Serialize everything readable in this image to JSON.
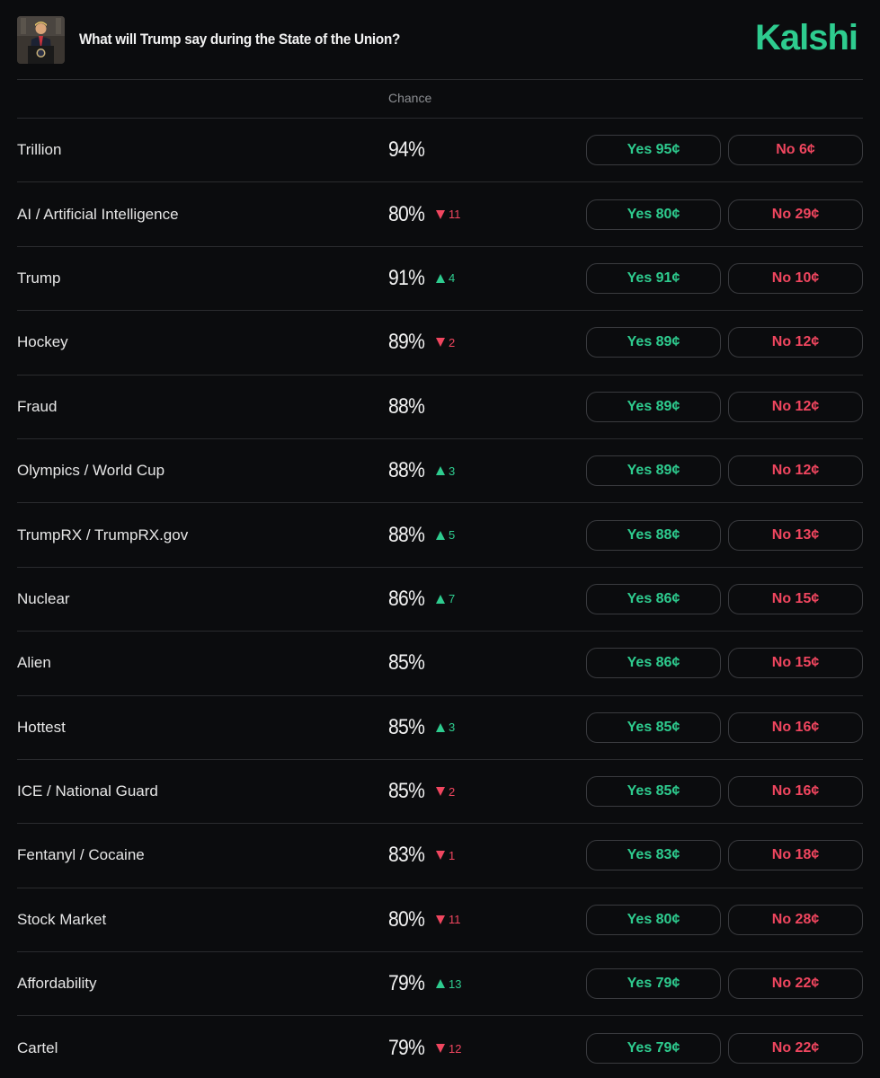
{
  "header": {
    "title": "What will Trump say during the State of the Union?",
    "logo": "Kalshi"
  },
  "table": {
    "column_chance": "Chance",
    "rows": [
      {
        "label": "Trillion",
        "chance": "94%",
        "delta": "",
        "delta_dir": "none",
        "yes": "Yes 95¢",
        "no": "No 6¢"
      },
      {
        "label": "AI / Artificial Intelligence",
        "chance": "80%",
        "delta": "11",
        "delta_dir": "down",
        "yes": "Yes 80¢",
        "no": "No 29¢"
      },
      {
        "label": "Trump",
        "chance": "91%",
        "delta": "4",
        "delta_dir": "up",
        "yes": "Yes 91¢",
        "no": "No 10¢"
      },
      {
        "label": "Hockey",
        "chance": "89%",
        "delta": "2",
        "delta_dir": "down",
        "yes": "Yes 89¢",
        "no": "No 12¢"
      },
      {
        "label": "Fraud",
        "chance": "88%",
        "delta": "",
        "delta_dir": "none",
        "yes": "Yes 89¢",
        "no": "No 12¢"
      },
      {
        "label": "Olympics / World Cup",
        "chance": "88%",
        "delta": "3",
        "delta_dir": "up",
        "yes": "Yes 89¢",
        "no": "No 12¢"
      },
      {
        "label": "TrumpRX / TrumpRX.gov",
        "chance": "88%",
        "delta": "5",
        "delta_dir": "up",
        "yes": "Yes 88¢",
        "no": "No 13¢"
      },
      {
        "label": "Nuclear",
        "chance": "86%",
        "delta": "7",
        "delta_dir": "up",
        "yes": "Yes 86¢",
        "no": "No 15¢"
      },
      {
        "label": "Alien",
        "chance": "85%",
        "delta": "",
        "delta_dir": "none",
        "yes": "Yes 86¢",
        "no": "No 15¢"
      },
      {
        "label": "Hottest",
        "chance": "85%",
        "delta": "3",
        "delta_dir": "up",
        "yes": "Yes 85¢",
        "no": "No 16¢"
      },
      {
        "label": "ICE / National Guard",
        "chance": "85%",
        "delta": "2",
        "delta_dir": "down",
        "yes": "Yes 85¢",
        "no": "No 16¢"
      },
      {
        "label": "Fentanyl / Cocaine",
        "chance": "83%",
        "delta": "1",
        "delta_dir": "down",
        "yes": "Yes 83¢",
        "no": "No 18¢"
      },
      {
        "label": "Stock Market",
        "chance": "80%",
        "delta": "11",
        "delta_dir": "down",
        "yes": "Yes 80¢",
        "no": "No 28¢"
      },
      {
        "label": "Affordability",
        "chance": "79%",
        "delta": "13",
        "delta_dir": "up",
        "yes": "Yes 79¢",
        "no": "No 22¢"
      },
      {
        "label": "Cartel",
        "chance": "79%",
        "delta": "12",
        "delta_dir": "down",
        "yes": "Yes 79¢",
        "no": "No 22¢"
      }
    ]
  },
  "colors": {
    "background": "#0b0c0e",
    "yes": "#2ecc8f",
    "no": "#f0465f",
    "brand": "#2ecc8f"
  }
}
